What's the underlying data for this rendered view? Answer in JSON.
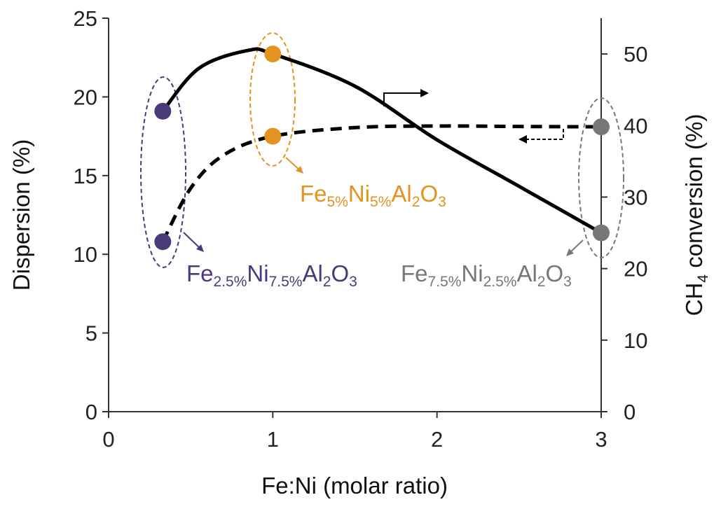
{
  "chart_data": {
    "type": "line",
    "xlabel": "Fe:Ni (molar ratio)",
    "ylabel_left": "Dispersion (%)",
    "ylabel_right": {
      "prefix": "CH",
      "sub": "4",
      "suffix": " conversion (%)"
    },
    "xlim": [
      0,
      3
    ],
    "ylim_left": [
      0,
      25
    ],
    "ylim_right": [
      0,
      55
    ],
    "x_ticks": [
      "0",
      "1",
      "2",
      "3"
    ],
    "y_left_ticks": [
      "0",
      "5",
      "10",
      "15",
      "20",
      "25"
    ],
    "y_right_ticks": [
      "0",
      "10",
      "20",
      "30",
      "40",
      "50"
    ],
    "grid": false,
    "series": [
      {
        "axis": "right",
        "style": "solid",
        "x": [
          0.33,
          1,
          3
        ],
        "values": [
          42,
          50,
          25
        ],
        "curve": [
          [
            0.33,
            42
          ],
          [
            0.55,
            48
          ],
          [
            0.85,
            50.5
          ],
          [
            1,
            50
          ],
          [
            1.5,
            45.5
          ],
          [
            2,
            38
          ],
          [
            2.5,
            31.5
          ],
          [
            3,
            25
          ]
        ],
        "point_colors": [
          "#4a3a78",
          "#e3931f",
          "#777777"
        ]
      },
      {
        "axis": "left",
        "style": "dashed",
        "x": [
          0.33,
          1,
          3
        ],
        "values": [
          10.8,
          17.5,
          18.1
        ],
        "curve": [
          [
            0.33,
            10.8
          ],
          [
            0.5,
            14.2
          ],
          [
            0.7,
            16.3
          ],
          [
            1,
            17.5
          ],
          [
            1.5,
            18.05
          ],
          [
            2,
            18.15
          ],
          [
            2.5,
            18.12
          ],
          [
            3,
            18.1
          ]
        ],
        "point_colors": [
          "#4a3a78",
          "#e3931f",
          "#777777"
        ]
      }
    ],
    "annotations": [
      {
        "key": "purple",
        "color": "#4a3a78",
        "parts": [
          [
            "Fe",
            ""
          ],
          [
            "2.5%",
            "sub"
          ],
          [
            "Ni",
            ""
          ],
          [
            "7.5%",
            "sub"
          ],
          [
            "Al",
            ""
          ],
          [
            "2",
            "sub"
          ],
          [
            "O",
            ""
          ],
          [
            "3",
            "sub"
          ]
        ]
      },
      {
        "key": "orange",
        "color": "#e3931f",
        "parts": [
          [
            "Fe",
            ""
          ],
          [
            "5%",
            "sub"
          ],
          [
            "Ni",
            ""
          ],
          [
            "5%",
            "sub"
          ],
          [
            "Al",
            ""
          ],
          [
            "2",
            "sub"
          ],
          [
            "O",
            ""
          ],
          [
            "3",
            "sub"
          ]
        ]
      },
      {
        "key": "gray",
        "color": "#777777",
        "parts": [
          [
            "Fe",
            ""
          ],
          [
            "7.5%",
            "sub"
          ],
          [
            "Ni",
            ""
          ],
          [
            "2.5%",
            "sub"
          ],
          [
            "Al",
            ""
          ],
          [
            "2",
            "sub"
          ],
          [
            "O",
            ""
          ],
          [
            "3",
            "sub"
          ]
        ]
      }
    ]
  }
}
